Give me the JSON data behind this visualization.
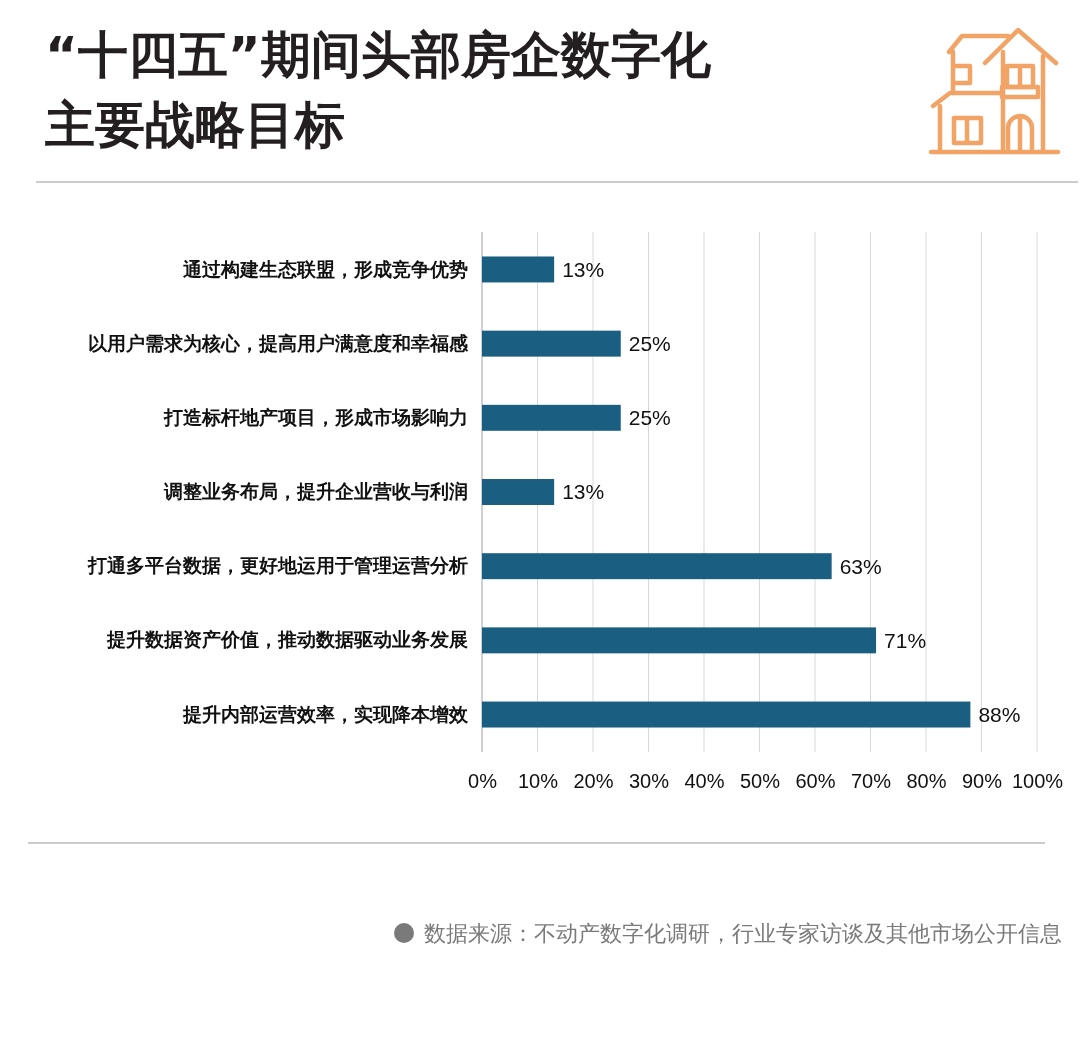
{
  "chart_data": {
    "type": "bar",
    "orientation": "horizontal",
    "title": "“十四五”期间头部房企数字化主要战略目标",
    "categories": [
      "通过构建生态联盟，形成竞争优势",
      "以用户需求为核心，提高用户满意度和幸福感",
      "打造标杆地产项目，形成市场影响力",
      "调整业务布局，提升企业营收与利润",
      "打通多平台数据，更好地运用于管理运营分析",
      "提升数据资产价值，推动数据驱动业务发展",
      "提升内部运营效率，实现降本增效"
    ],
    "values": [
      13,
      25,
      25,
      13,
      63,
      71,
      88
    ],
    "color": "#1a5f81",
    "value_labels": [
      "13%",
      "25%",
      "25%",
      "13%",
      "63%",
      "71%",
      "88%"
    ],
    "xlim": [
      0,
      100
    ],
    "xticks": [
      {
        "value": 0,
        "label": "0%"
      },
      {
        "value": 10,
        "label": "10%"
      },
      {
        "value": 20,
        "label": "20%"
      },
      {
        "value": 30,
        "label": "30%"
      },
      {
        "value": 40,
        "label": "40%"
      },
      {
        "value": 50,
        "label": "50%"
      },
      {
        "value": 60,
        "label": "60%"
      },
      {
        "value": 70,
        "label": "70%"
      },
      {
        "value": 80,
        "label": "80%"
      },
      {
        "value": 90,
        "label": "90%"
      },
      {
        "value": 100,
        "label": "100%"
      }
    ],
    "grid": "x",
    "annotations": [
      "数据来源：不动产数字化调研，行业专家访谈及其他市场公开信息"
    ]
  }
}
